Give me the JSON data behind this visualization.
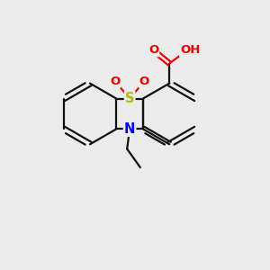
{
  "background_color": "#ebebeb",
  "atom_colors": {
    "S": "#b8b800",
    "N": "#0000ee",
    "O": "#ee0000",
    "C": "#000000"
  },
  "bond_color": "#111111",
  "bond_lw": 1.6,
  "figsize": [
    3.0,
    3.0
  ],
  "dpi": 100
}
